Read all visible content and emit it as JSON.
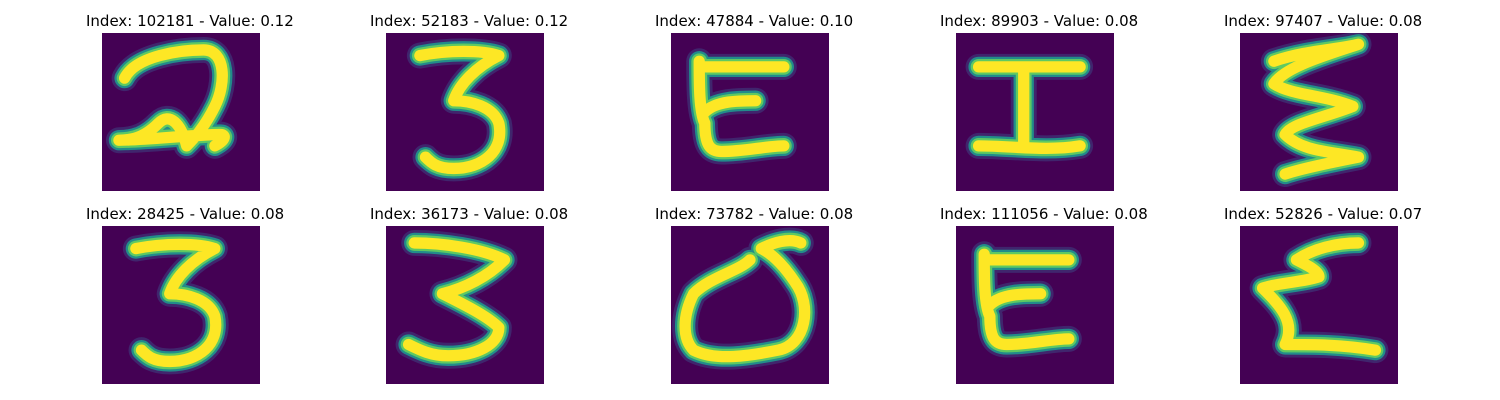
{
  "colors": {
    "background": "#440154",
    "stroke_core": "#fde725",
    "stroke_mid": "#5ec962",
    "stroke_edge": "#21918c",
    "stroke_dim": "#3b528b"
  },
  "panels": [
    {
      "title": "Index: 102181 - Value: 0.12",
      "glyph": "2-like"
    },
    {
      "title": "Index: 52183 - Value: 0.12",
      "glyph": "3"
    },
    {
      "title": "Index: 47884 - Value: 0.10",
      "glyph": "bracket-open"
    },
    {
      "title": "Index: 89903 - Value: 0.08",
      "glyph": "H-rotated"
    },
    {
      "title": "Index: 97407 - Value: 0.08",
      "glyph": "squiggle-3"
    },
    {
      "title": "Index: 28425 - Value: 0.08",
      "glyph": "3"
    },
    {
      "title": "Index: 36173 - Value: 0.08",
      "glyph": "3-zigzag"
    },
    {
      "title": "Index: 73782 - Value: 0.08",
      "glyph": "d-like"
    },
    {
      "title": "Index: 111056 - Value: 0.08",
      "glyph": "bracket-open"
    },
    {
      "title": "Index: 52826 - Value: 0.07",
      "glyph": "2-zigzag"
    }
  ]
}
